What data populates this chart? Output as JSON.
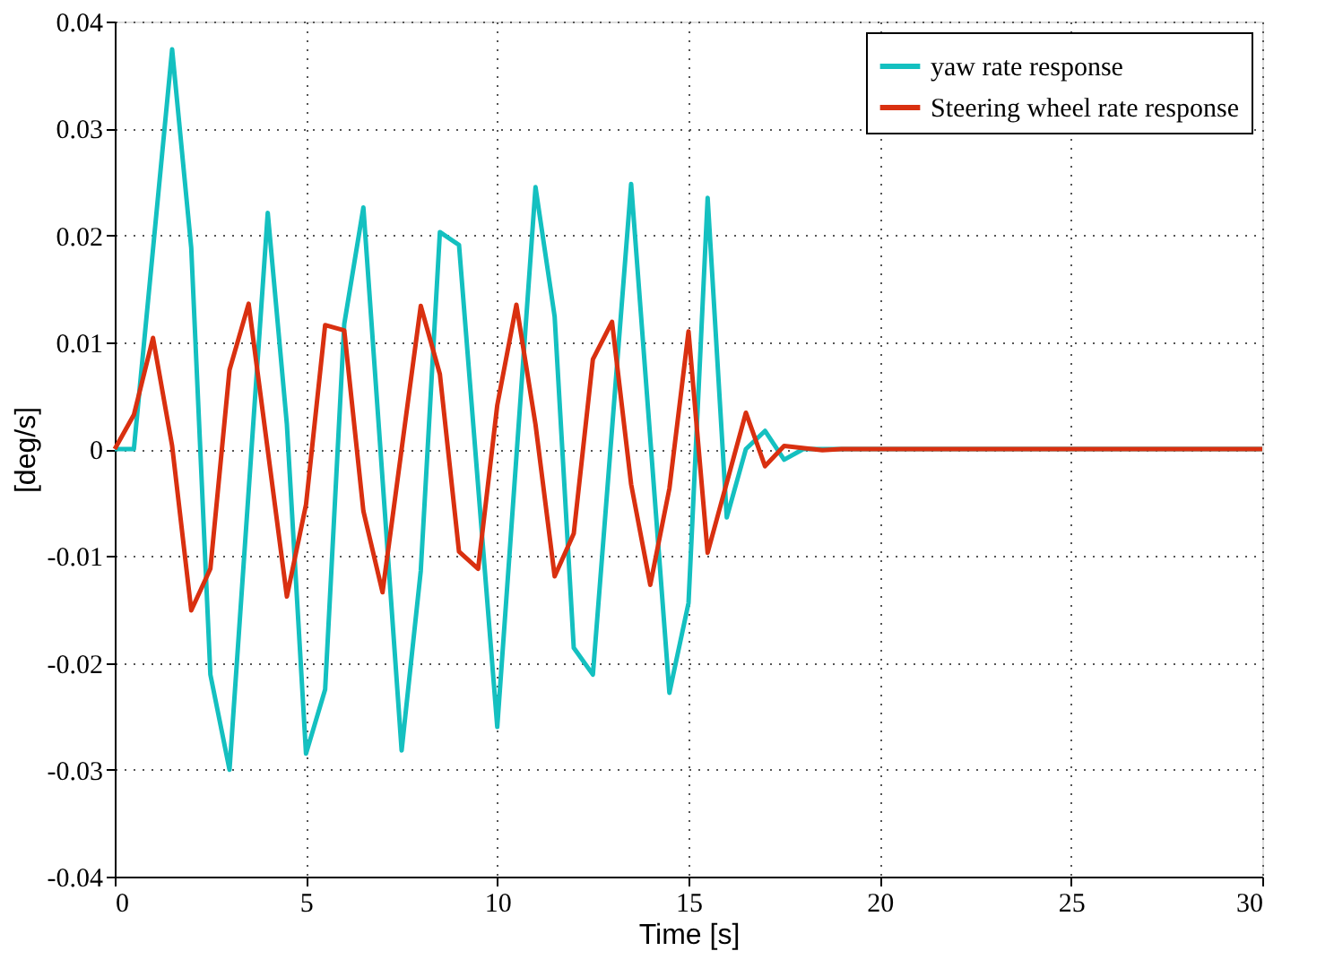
{
  "chart_data": {
    "type": "line",
    "xlabel": "Time [s]",
    "ylabel": "[deg/s]",
    "xlim": [
      0,
      30
    ],
    "xticks": [
      0,
      5,
      10,
      15,
      20,
      25,
      30
    ],
    "ylim": [
      -0.04,
      0.04
    ],
    "yticks": [
      -0.04,
      -0.03,
      -0.02,
      -0.01,
      0,
      0.01,
      0.02,
      0.03,
      0.04
    ],
    "grid": true,
    "legend": "top right",
    "line_style": "solid",
    "marker": "none",
    "series": [
      {
        "name": "yaw rate response",
        "color": "#14c0c0",
        "x": [
          0,
          0.5,
          1.5,
          2.0,
          2.5,
          3.0,
          4.0,
          4.5,
          5.0,
          5.5,
          6.0,
          6.5,
          7.5,
          8.0,
          8.5,
          9.0,
          10.0,
          11.0,
          11.5,
          12.0,
          12.5,
          13.5,
          14.5,
          15.0,
          15.5,
          16.0,
          16.5,
          17.0,
          17.5,
          18.0,
          19.0,
          30.0
        ],
        "values": [
          0,
          0,
          0.0374,
          0.0188,
          -0.0211,
          -0.03,
          0.0221,
          0.0023,
          -0.0285,
          -0.0225,
          0.0117,
          0.0226,
          -0.0282,
          -0.0114,
          0.0203,
          0.0191,
          -0.026,
          0.0245,
          0.0124,
          -0.0186,
          -0.0211,
          0.0248,
          -0.0228,
          -0.0144,
          0.0235,
          -0.0064,
          0,
          0.0017,
          -0.001,
          0,
          0,
          0
        ]
      },
      {
        "name": "Steering wheel rate response",
        "color": "#d93010",
        "x": [
          0,
          0.5,
          1.0,
          1.5,
          2.0,
          2.5,
          3.0,
          3.5,
          4.5,
          5.0,
          5.5,
          6.0,
          6.5,
          7.0,
          8.0,
          8.5,
          9.0,
          9.5,
          10.0,
          10.5,
          11.0,
          11.5,
          12.0,
          12.5,
          13.0,
          13.5,
          14.0,
          14.5,
          15.0,
          15.5,
          16.5,
          17.0,
          17.5,
          18.5,
          19.0,
          30.0
        ],
        "values": [
          0,
          0.0032,
          0.0104,
          0.0003,
          -0.0151,
          -0.0112,
          0.0074,
          0.0136,
          -0.0138,
          -0.0052,
          0.0116,
          0.0111,
          -0.0058,
          -0.0134,
          0.0134,
          0.007,
          -0.0096,
          -0.0112,
          0.0041,
          0.0135,
          0.0023,
          -0.0119,
          -0.0079,
          0.0084,
          0.0119,
          -0.0033,
          -0.0127,
          -0.0037,
          0.011,
          -0.0097,
          0.0034,
          -0.0016,
          0.0003,
          -0.0001,
          0,
          0
        ]
      }
    ]
  }
}
